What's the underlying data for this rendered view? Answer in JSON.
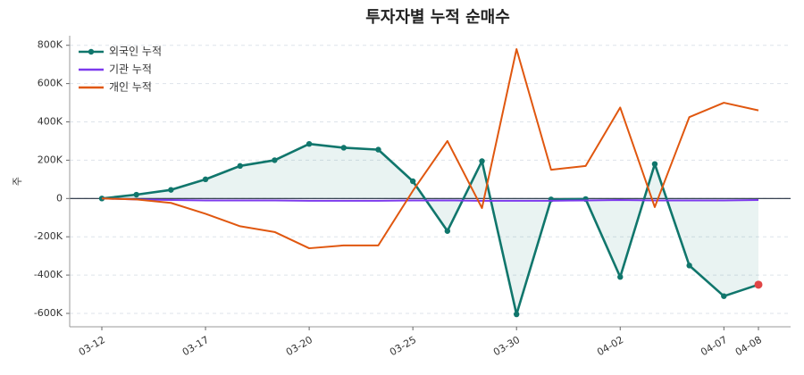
{
  "chart_data": {
    "type": "line",
    "title": "투자자별 누적 순매수",
    "y_label": "주",
    "categories": [
      "03-12",
      null,
      null,
      "03-17",
      null,
      null,
      "03-20",
      null,
      null,
      "03-25",
      null,
      null,
      "03-30",
      null,
      null,
      "04-02",
      null,
      null,
      "04-07",
      "04-08"
    ],
    "series": [
      {
        "name": "외국인 누적",
        "color": "#10766c",
        "marker": true,
        "area": true,
        "values": [
          0,
          20000,
          45000,
          100000,
          170000,
          200000,
          285000,
          265000,
          255000,
          90000,
          -170000,
          195000,
          -605000,
          -5000,
          -3000,
          -410000,
          180000,
          -350000,
          -510000,
          -450000
        ]
      },
      {
        "name": "기관 누적",
        "color": "#7c3aed",
        "marker": false,
        "area": false,
        "values": [
          0,
          -5000,
          -8000,
          -10000,
          -10000,
          -10000,
          -12000,
          -12000,
          -12000,
          -10000,
          -10000,
          -12000,
          -12000,
          -12000,
          -10000,
          -8000,
          -10000,
          -10000,
          -10000,
          -8000
        ]
      },
      {
        "name": "개인 누적",
        "color": "#e0570f",
        "marker": false,
        "area": false,
        "values": [
          0,
          -5000,
          -23000,
          -80000,
          -145000,
          -175000,
          -260000,
          -245000,
          -245000,
          40000,
          300000,
          -50000,
          780000,
          150000,
          170000,
          475000,
          -45000,
          425000,
          500000,
          460000
        ]
      }
    ],
    "highlight_color": "#e04545",
    "ylim": [
      -670000,
      850000
    ],
    "yticks": [
      {
        "value": -600000,
        "label": "-600K"
      },
      {
        "value": -400000,
        "label": "-400K"
      },
      {
        "value": -200000,
        "label": "-200K"
      },
      0,
      {
        "value": 200000,
        "label": "200K"
      },
      {
        "value": 400000,
        "label": "400K"
      },
      {
        "value": 600000,
        "label": "600K"
      },
      {
        "value": 800000,
        "label": "800K"
      }
    ],
    "grid": true,
    "legend": "top-left"
  }
}
